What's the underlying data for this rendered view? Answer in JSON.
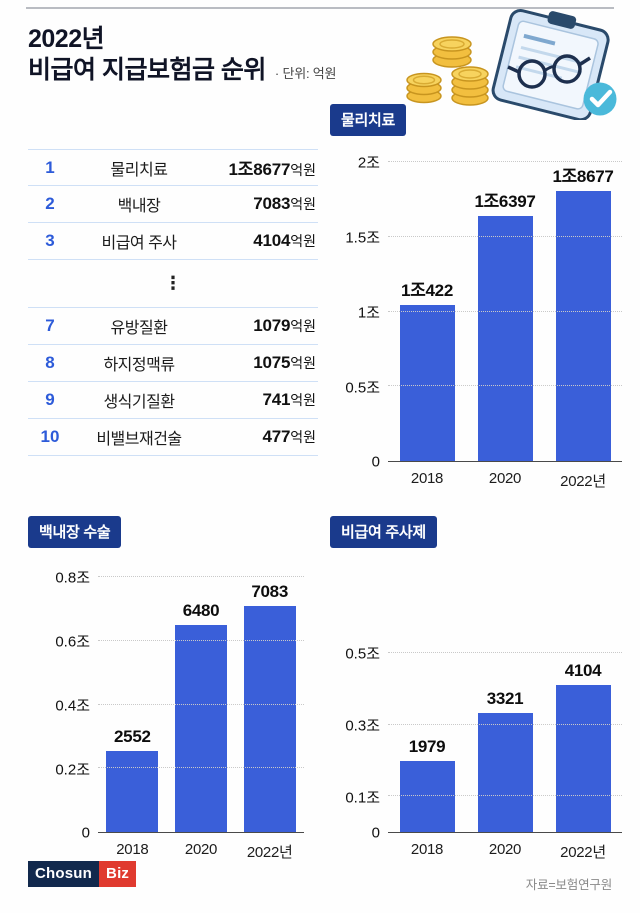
{
  "page": {
    "title_line1": "2022년",
    "title_line2": "비급여 지급보험금 순위",
    "unit_note": "· 단위: 억원",
    "source": "자료=보험연구원"
  },
  "logo": {
    "part1": "Chosun",
    "part2": "Biz"
  },
  "ranking_table": {
    "rows_top": [
      {
        "rank": "1",
        "name": "물리치료",
        "value": "1조8677",
        "suffix": "억원"
      },
      {
        "rank": "2",
        "name": "백내장",
        "value": "7083",
        "suffix": "억원"
      },
      {
        "rank": "3",
        "name": "비급여 주사",
        "value": "4104",
        "suffix": "억원"
      }
    ],
    "ellipsis": "⋮",
    "rows_bottom": [
      {
        "rank": "7",
        "name": "유방질환",
        "value": "1079",
        "suffix": "억원"
      },
      {
        "rank": "8",
        "name": "하지정맥류",
        "value": "1075",
        "suffix": "억원"
      },
      {
        "rank": "9",
        "name": "생식기질환",
        "value": "741",
        "suffix": "억원"
      },
      {
        "rank": "10",
        "name": "비밸브재건술",
        "value": "477",
        "suffix": "억원"
      }
    ]
  },
  "chart_data": [
    {
      "type": "bar",
      "title": "물리치료",
      "categories": [
        "2018",
        "2020",
        "2022년"
      ],
      "values": [
        10422,
        16397,
        18677
      ],
      "value_labels": [
        "1조422",
        "1조6397",
        "1조8677"
      ],
      "unit": "억원",
      "ylim": [
        0,
        20000
      ],
      "yticks": [
        0,
        5000,
        10000,
        15000,
        20000
      ],
      "ytick_labels": [
        "0",
        "0.5조",
        "1조",
        "1.5조",
        "2조"
      ],
      "grid": "dotted-horizontal",
      "legend": "none",
      "bar_color": "#3a5fd9"
    },
    {
      "type": "bar",
      "title": "백내장 수술",
      "categories": [
        "2018",
        "2020",
        "2022년"
      ],
      "values": [
        2552,
        6480,
        7083
      ],
      "value_labels": [
        "2552",
        "6480",
        "7083"
      ],
      "unit": "억원",
      "ylim": [
        0,
        8000
      ],
      "yticks": [
        0,
        2000,
        4000,
        6000,
        8000
      ],
      "ytick_labels": [
        "0",
        "0.2조",
        "0.4조",
        "0.6조",
        "0.8조"
      ],
      "grid": "dotted-horizontal",
      "legend": "none",
      "bar_color": "#3a5fd9"
    },
    {
      "type": "bar",
      "title": "비급여 주사제",
      "categories": [
        "2018",
        "2020",
        "2022년"
      ],
      "values": [
        1979,
        3321,
        4104
      ],
      "value_labels": [
        "1979",
        "3321",
        "4104"
      ],
      "unit": "억원",
      "ylim": [
        0,
        5000
      ],
      "yticks": [
        0,
        1000,
        3000,
        5000
      ],
      "ytick_labels": [
        "0",
        "0.1조",
        "0.3조",
        "0.5조"
      ],
      "grid": "dotted-horizontal",
      "legend": "none",
      "bar_color": "#3a5fd9"
    }
  ],
  "colors": {
    "bar": "#3a5fd9",
    "badge_bg": "#1a3a8c",
    "rank_text": "#2d5bd9",
    "row_line": "#cfe0f6",
    "logo_navy": "#12294d",
    "logo_red": "#e03a2f"
  }
}
